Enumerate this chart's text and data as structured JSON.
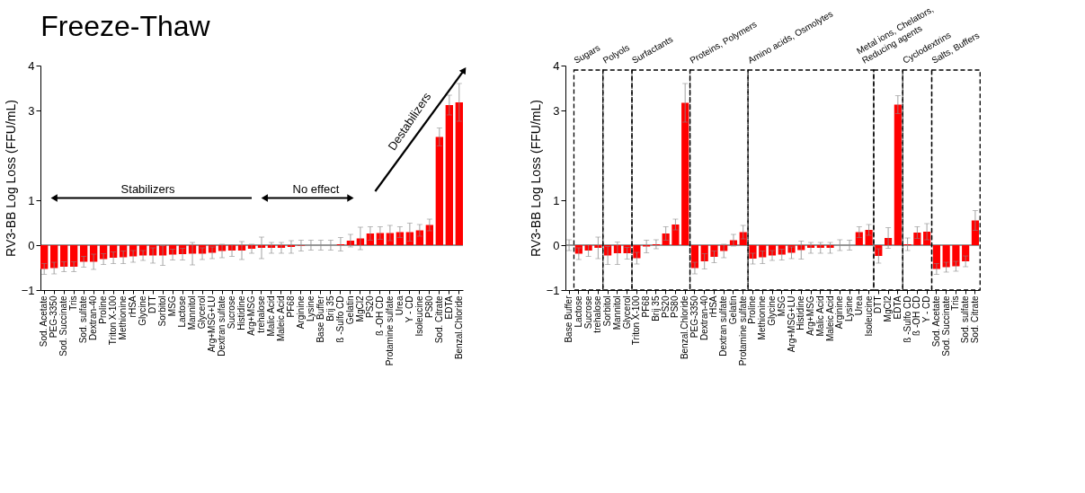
{
  "chart_data": [
    {
      "type": "bar",
      "title": "Freeze-Thaw",
      "ylabel": "RV3-BB Log Loss (FFU/mL)",
      "categories": [
        "Sod. Acetate",
        "PEG-3350",
        "Sod. Succinate",
        "Tris",
        "Sod. sulfate",
        "Dextran-40",
        "Proline",
        "Triton X-100",
        "Methionine",
        "rHSA",
        "Glycine",
        "DTT",
        "Sorbitol",
        "MSG",
        "Lactose",
        "Mannitol",
        "Glycerol",
        "Arg+MSG+LU",
        "Dextran sulfate",
        "Sucrose",
        "Histidine",
        "Arg+MSG",
        "trehalose",
        "Malic Acid",
        "Maleic Acid",
        "PF68",
        "Arginine",
        "Lysine",
        "Base Buffer",
        "Brij 35",
        "ß -Sulfo CD",
        "Gelatin",
        "MgCl2",
        "PS20",
        "ß -OH CD",
        "Protamine sulfate",
        "Urea",
        "Y - CD",
        "Isoleucine",
        "PS80",
        "Sod. Citrate",
        "EDTA",
        "Benzal.Chloride"
      ],
      "series": [
        {
          "color": "#ff0000",
          "values": [
            -0.53,
            -0.51,
            -0.48,
            -0.48,
            -0.37,
            -0.37,
            -0.31,
            -0.28,
            -0.27,
            -0.25,
            -0.23,
            -0.23,
            -0.23,
            -0.21,
            -0.2,
            -0.19,
            -0.19,
            -0.17,
            -0.13,
            -0.12,
            -0.12,
            -0.08,
            -0.06,
            -0.06,
            -0.06,
            -0.04,
            -0.01,
            0,
            0,
            0,
            0.02,
            0.1,
            0.15,
            0.26,
            0.27,
            0.27,
            0.29,
            0.29,
            0.33,
            0.45,
            2.41,
            3.12,
            3.18
          ],
          "errors": [
            0.12,
            0.13,
            0.11,
            0.11,
            0.12,
            0.17,
            0.12,
            0.13,
            0.14,
            0.13,
            0.11,
            0.17,
            0.22,
            0.12,
            0.13,
            0.25,
            0.13,
            0.13,
            0.15,
            0.13,
            0.2,
            0.1,
            0.24,
            0.12,
            0.12,
            0.14,
            0.12,
            0.11,
            0.11,
            0.11,
            0.15,
            0.14,
            0.25,
            0.15,
            0.14,
            0.17,
            0.12,
            0.2,
            0.13,
            0.13,
            0.2,
            0.22,
            0.42
          ]
        }
      ],
      "ylim": [
        -1,
        4
      ],
      "yticks": [
        -1,
        0,
        1,
        3,
        4
      ],
      "grid": false,
      "ref_lines": [
        {
          "axis": "y",
          "value": 0
        }
      ],
      "annotations": [
        "Stabilizers",
        "No effect",
        "Destabilizers"
      ]
    },
    {
      "type": "bar",
      "ylabel": "RV3-BB Log Loss (FFU/mL)",
      "categories": [
        "Base Buffer",
        "Lactose",
        "Sucrose",
        "trehalose",
        "Sorbitol",
        "Mannitol",
        "Glycerol",
        "Triton X-100",
        "PF68",
        "Brij 35",
        "PS20",
        "PS80",
        "Benzal.Chloride",
        "PEG-3350",
        "Dextran-40",
        "rHSA",
        "Dextran sulfate",
        "Gelatin",
        "Protamine sulfate",
        "Proline",
        "Methionine",
        "Glycine",
        "MSG",
        "Arg+MSG+LU",
        "Histidine",
        "Arg+MSG",
        "Malic Acid",
        "Maleic Acid",
        "Arginine",
        "Lysine",
        "Urea",
        "Isoleucine",
        "DTT",
        "MgCl2",
        "EDTA",
        "ß -Sulfo CD",
        "ß -OH CD",
        "Y - CD",
        "Sod. Acetate",
        "Sod. Succinate",
        "Tris",
        "Sod. sulfate",
        "Sod. Citrate"
      ],
      "series": [
        {
          "color": "#ff0000",
          "values": [
            0,
            -0.19,
            -0.12,
            -0.06,
            -0.23,
            -0.18,
            -0.18,
            -0.29,
            -0.03,
            0.02,
            0.26,
            0.46,
            3.17,
            -0.51,
            -0.36,
            -0.26,
            -0.13,
            0.11,
            0.29,
            -0.3,
            -0.27,
            -0.23,
            -0.21,
            -0.17,
            -0.11,
            -0.06,
            -0.06,
            -0.06,
            0,
            0,
            0.29,
            0.34,
            -0.24,
            0.16,
            3.13,
            0.02,
            0.28,
            0.3,
            -0.53,
            -0.49,
            -0.47,
            -0.36,
            0.55
          ],
          "errors": [
            0.12,
            0.13,
            0.13,
            0.24,
            0.2,
            0.25,
            0.13,
            0.13,
            0.14,
            0.1,
            0.15,
            0.12,
            0.43,
            0.13,
            0.17,
            0.13,
            0.15,
            0.13,
            0.15,
            0.12,
            0.14,
            0.11,
            0.12,
            0.13,
            0.2,
            0.12,
            0.12,
            0.12,
            0.12,
            0.11,
            0.12,
            0.12,
            0.16,
            0.23,
            0.2,
            0.14,
            0.13,
            0.18,
            0.12,
            0.11,
            0.11,
            0.12,
            0.22
          ]
        }
      ],
      "ylim": [
        -1,
        4
      ],
      "yticks": [
        -1,
        0,
        1,
        3,
        4
      ],
      "grid": false,
      "ref_lines": [
        {
          "axis": "y",
          "value": 0
        }
      ],
      "annotations": [
        "Sugars",
        "Polyols",
        "Surfactants",
        "Proteins, Polymers",
        "Amino acids, Osmolytes",
        "Metal ions, Chelators,\nReducing agents",
        "Cyclodextrins",
        "Salts, Buffers"
      ]
    }
  ]
}
